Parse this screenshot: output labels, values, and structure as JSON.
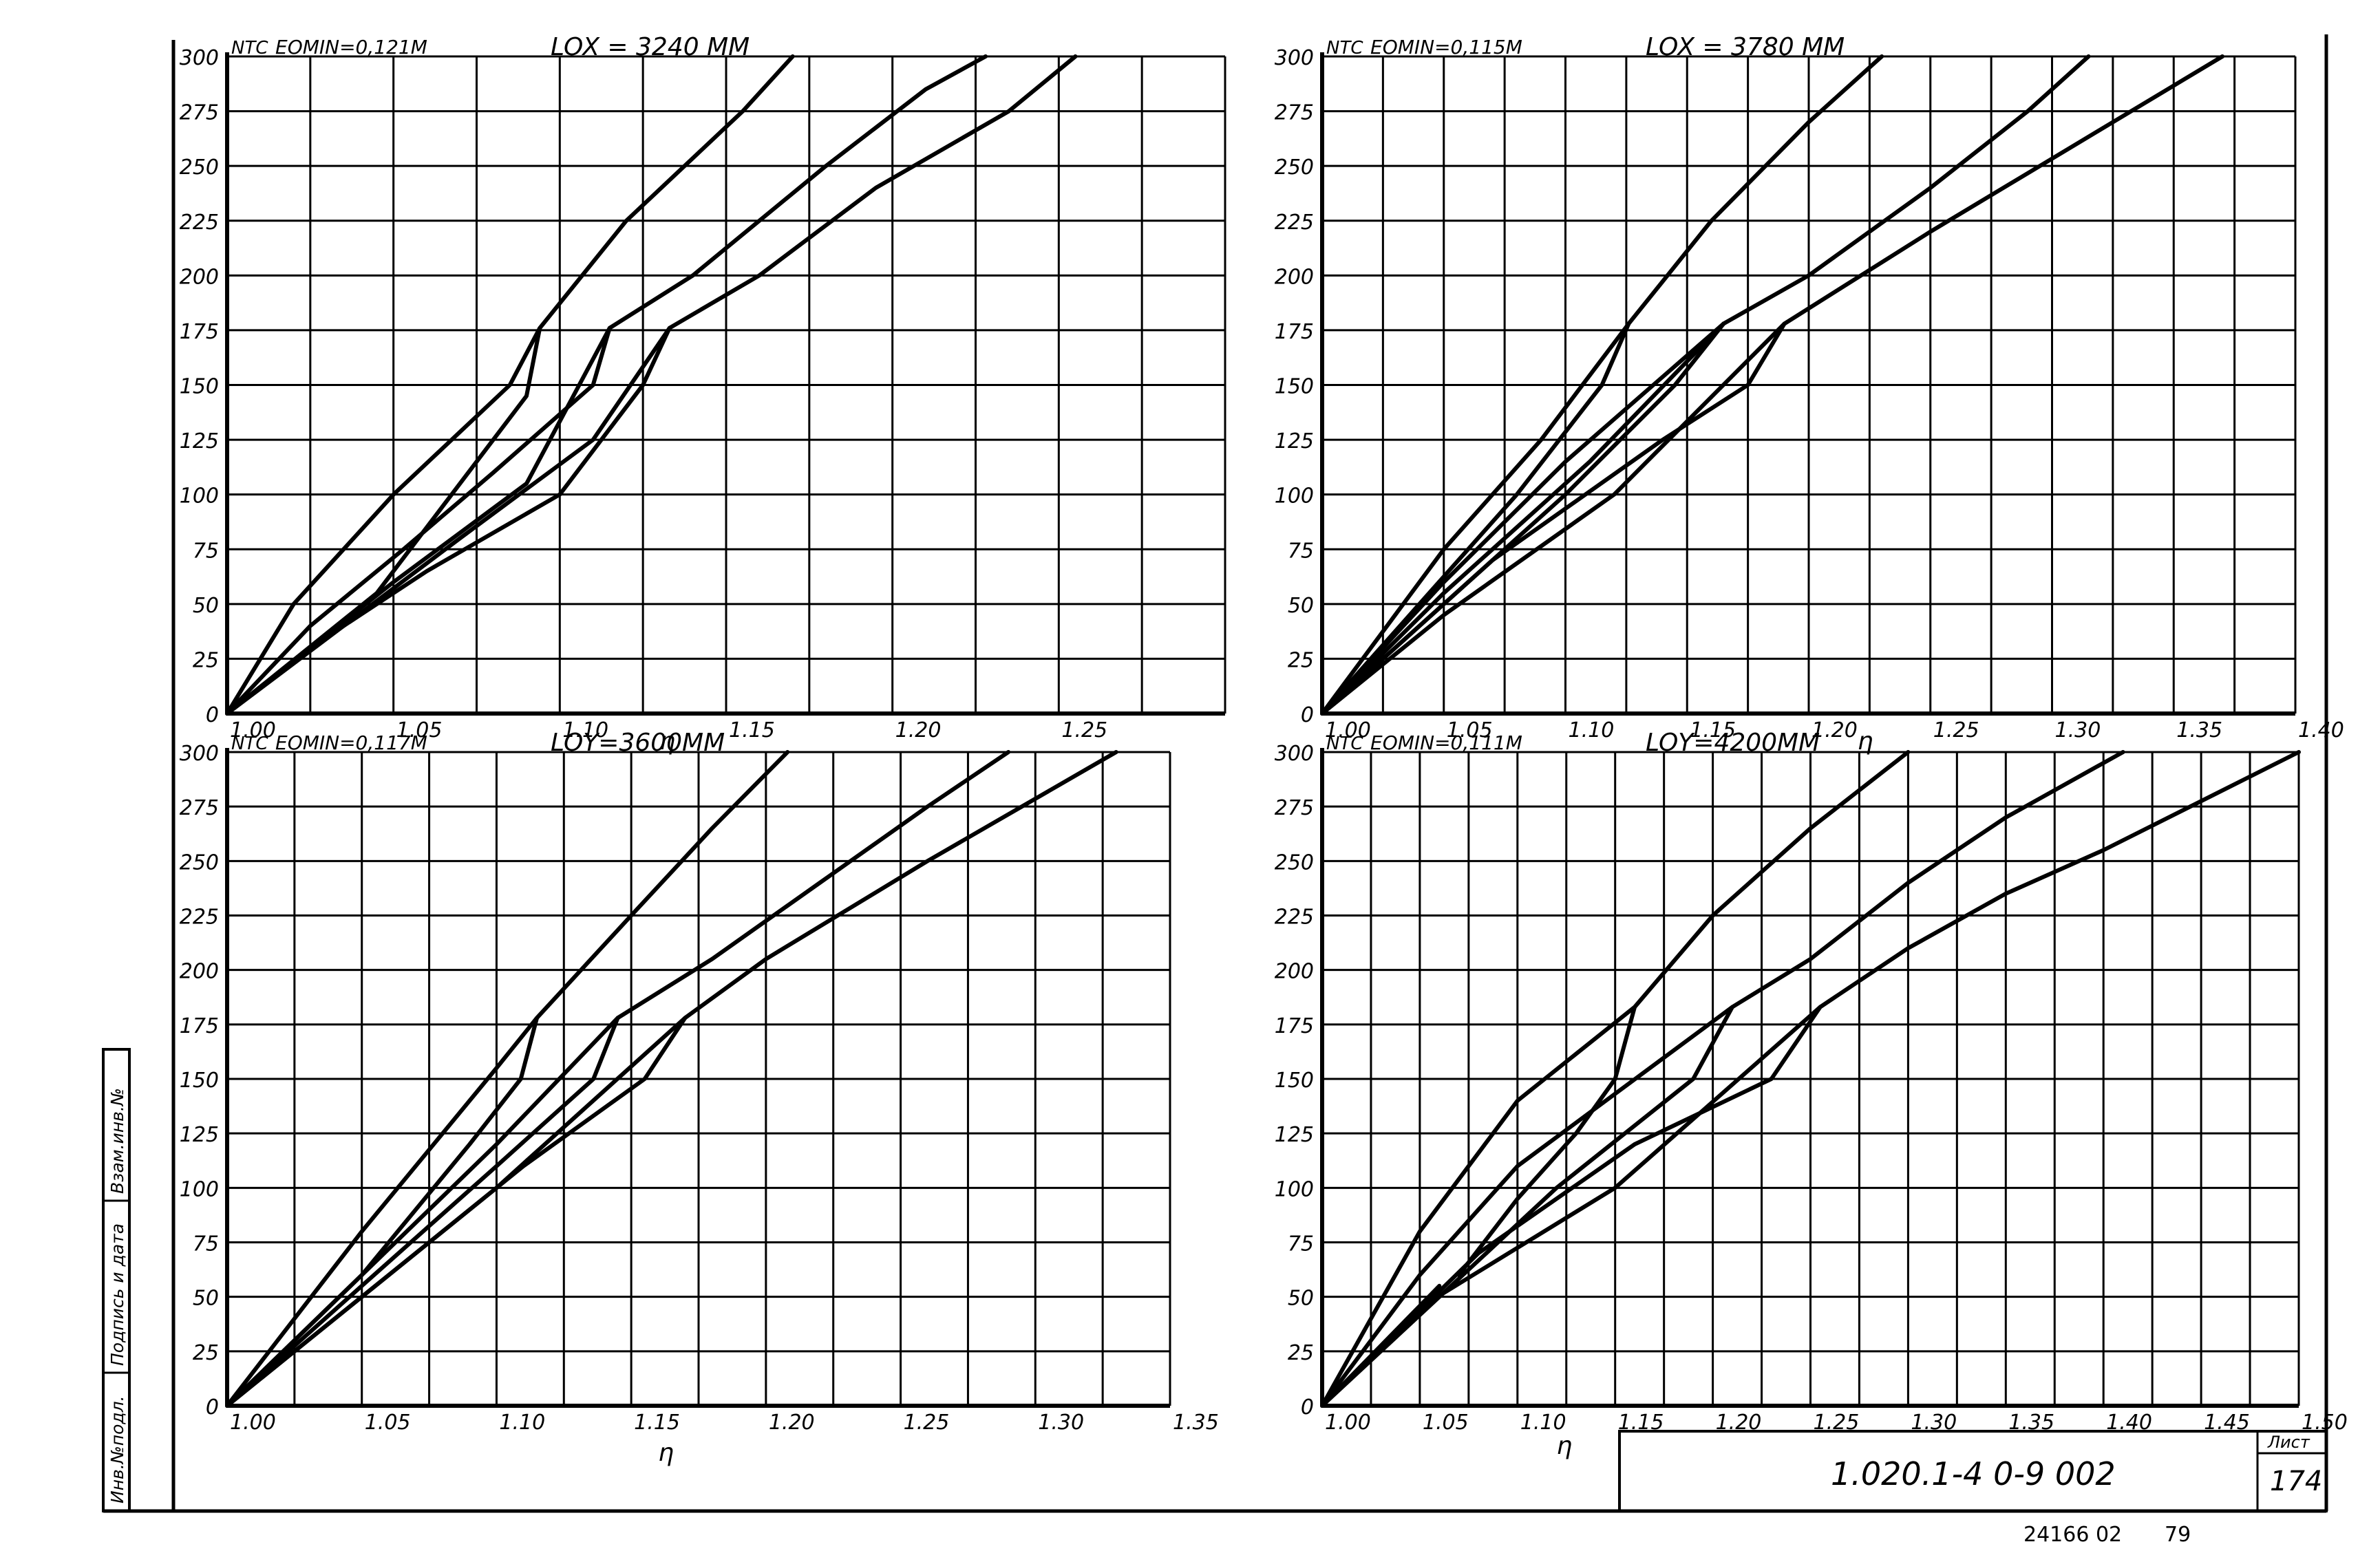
{
  "title_block": {
    "designation": "1.020.1-4 0-9 002",
    "sheet_label": "Лист",
    "sheet_number": "174",
    "archive_number": "24166 02",
    "page": "79"
  },
  "side_stamp": {
    "cells": [
      "Инв.№подл.",
      "Подпись и дата",
      "Взам.инв.№"
    ]
  },
  "chart_data": [
    {
      "type": "line",
      "id": "lox3240",
      "title": "LOX = 3240 ММ",
      "subtitle": "EOMIN=0,121М",
      "ylabel": "NТС",
      "xlabel": "η",
      "xlim": [
        1.0,
        1.3
      ],
      "ylim": [
        0,
        300
      ],
      "x_ticks": [
        "1.00",
        "1.05",
        "1.10",
        "1.15",
        "1.20",
        "1.25"
      ],
      "y_ticks": [
        "0",
        "25",
        "50",
        "75",
        "100",
        "125",
        "150",
        "175",
        "200",
        "225",
        "250",
        "275",
        "300"
      ],
      "grid": true,
      "series": [
        {
          "x": [
            1.0,
            1.02,
            1.05,
            1.085,
            1.094,
            1.12,
            1.155,
            1.17
          ],
          "y": [
            0,
            50,
            100,
            150,
            176,
            225,
            275,
            300
          ]
        },
        {
          "x": [
            1.0,
            1.025,
            1.053,
            1.08,
            1.11,
            1.115,
            1.14,
            1.18,
            1.21,
            1.228
          ],
          "y": [
            0,
            40,
            75,
            110,
            150,
            176,
            200,
            250,
            285,
            300
          ]
        },
        {
          "x": [
            1.0,
            1.03,
            1.06,
            1.1,
            1.125,
            1.133,
            1.16,
            1.195,
            1.235,
            1.255
          ],
          "y": [
            0,
            35,
            65,
            100,
            150,
            176,
            200,
            240,
            275,
            300
          ]
        },
        {
          "x": [
            1.0,
            1.045,
            1.09,
            1.094
          ],
          "y": [
            0,
            55,
            145,
            176
          ]
        },
        {
          "x": [
            1.0,
            1.05,
            1.09,
            1.115
          ],
          "y": [
            0,
            60,
            105,
            176
          ]
        },
        {
          "x": [
            1.0,
            1.07,
            1.11,
            1.133
          ],
          "y": [
            0,
            80,
            125,
            176
          ]
        }
      ]
    },
    {
      "type": "line",
      "id": "lox3780",
      "title": "LOX = 3780 ММ",
      "subtitle": "EOMIN=0,115М",
      "ylabel": "NТС",
      "xlabel": "η",
      "xlim": [
        1.0,
        1.4
      ],
      "ylim": [
        0,
        300
      ],
      "x_ticks": [
        "1.00",
        "1.05",
        "1.10",
        "1.15",
        "1.20",
        "1.25",
        "1.30",
        "1.35",
        "1.40"
      ],
      "y_ticks": [
        "0",
        "25",
        "50",
        "75",
        "100",
        "125",
        "150",
        "175",
        "200",
        "225",
        "250",
        "275",
        "300"
      ],
      "grid": true,
      "series": [
        {
          "x": [
            1.0,
            1.05,
            1.09,
            1.126,
            1.16,
            1.2,
            1.23
          ],
          "y": [
            0,
            75,
            125,
            178,
            225,
            270,
            300
          ]
        },
        {
          "x": [
            1.0,
            1.05,
            1.1,
            1.165,
            1.2,
            1.25,
            1.29,
            1.315
          ],
          "y": [
            0,
            60,
            115,
            178,
            200,
            240,
            275,
            300
          ]
        },
        {
          "x": [
            1.0,
            1.05,
            1.12,
            1.19,
            1.25,
            1.31,
            1.37
          ],
          "y": [
            0,
            45,
            100,
            178,
            220,
            260,
            300
          ]
        },
        {
          "x": [
            1.0,
            1.04,
            1.08,
            1.115,
            1.126
          ],
          "y": [
            0,
            50,
            100,
            150,
            178
          ]
        },
        {
          "x": [
            1.0,
            1.05,
            1.1,
            1.145,
            1.165
          ],
          "y": [
            0,
            50,
            100,
            150,
            178
          ]
        },
        {
          "x": [
            1.0,
            1.07,
            1.14,
            1.175,
            1.19
          ],
          "y": [
            0,
            70,
            125,
            150,
            178
          ]
        },
        {
          "x": [
            1.0,
            1.05,
            1.11,
            1.165
          ],
          "y": [
            0,
            55,
            115,
            178
          ]
        }
      ]
    },
    {
      "type": "line",
      "id": "loy3600",
      "title": "LOY=3600ММ",
      "subtitle": "EOMIN=0,117М",
      "ylabel": "NТС",
      "xlabel": "η",
      "xlim": [
        1.0,
        1.35
      ],
      "ylim": [
        0,
        300
      ],
      "x_ticks": [
        "1.00",
        "1.05",
        "1.10",
        "1.15",
        "1.20",
        "1.25",
        "1.30",
        "1.35"
      ],
      "y_ticks": [
        "0",
        "25",
        "50",
        "75",
        "100",
        "125",
        "150",
        "175",
        "200",
        "225",
        "250",
        "275",
        "300"
      ],
      "grid": true,
      "series": [
        {
          "x": [
            1.0,
            1.05,
            1.1,
            1.115,
            1.15,
            1.18,
            1.208
          ],
          "y": [
            0,
            80,
            155,
            178,
            225,
            265,
            300
          ]
        },
        {
          "x": [
            1.0,
            1.05,
            1.1,
            1.145,
            1.18,
            1.22,
            1.26,
            1.29
          ],
          "y": [
            0,
            60,
            120,
            178,
            205,
            240,
            275,
            300
          ]
        },
        {
          "x": [
            1.0,
            1.05,
            1.1,
            1.17,
            1.2,
            1.26,
            1.33
          ],
          "y": [
            0,
            50,
            100,
            178,
            205,
            250,
            300
          ]
        },
        {
          "x": [
            1.0,
            1.05,
            1.09,
            1.109,
            1.115
          ],
          "y": [
            0,
            60,
            120,
            150,
            178
          ]
        },
        {
          "x": [
            1.0,
            1.05,
            1.1,
            1.136,
            1.145
          ],
          "y": [
            0,
            55,
            110,
            150,
            178
          ]
        },
        {
          "x": [
            1.0,
            1.06,
            1.11,
            1.155,
            1.17
          ],
          "y": [
            0,
            60,
            110,
            150,
            178
          ]
        }
      ]
    },
    {
      "type": "line",
      "id": "loy4200",
      "title": "LOY=4200ММ",
      "subtitle": "EOMIN=0,111М",
      "ylabel": "NТС",
      "xlabel": "η",
      "xlim": [
        1.0,
        1.5
      ],
      "ylim": [
        0,
        300
      ],
      "x_ticks": [
        "1.00",
        "1.05",
        "1.10",
        "1.15",
        "1.20",
        "1.25",
        "1.30",
        "1.35",
        "1.40",
        "1.45",
        "1.50"
      ],
      "y_ticks": [
        "0",
        "25",
        "50",
        "75",
        "100",
        "125",
        "150",
        "175",
        "200",
        "225",
        "250",
        "275",
        "300"
      ],
      "grid": true,
      "series": [
        {
          "x": [
            1.0,
            1.05,
            1.1,
            1.16,
            1.2,
            1.25,
            1.3
          ],
          "y": [
            0,
            80,
            140,
            183,
            225,
            265,
            300
          ]
        },
        {
          "x": [
            1.0,
            1.05,
            1.1,
            1.21,
            1.25,
            1.3,
            1.35,
            1.41
          ],
          "y": [
            0,
            60,
            110,
            183,
            205,
            240,
            270,
            300
          ]
        },
        {
          "x": [
            1.0,
            1.05,
            1.15,
            1.255,
            1.3,
            1.35,
            1.4,
            1.5
          ],
          "y": [
            0,
            45,
            100,
            183,
            210,
            235,
            255,
            300
          ]
        },
        {
          "x": [
            1.0,
            1.06
          ],
          "y": [
            0,
            55
          ]
        },
        {
          "x": [
            1.07,
            1.1,
            1.13,
            1.15,
            1.16
          ],
          "y": [
            60,
            95,
            125,
            150,
            183
          ]
        },
        {
          "x": [
            1.0,
            1.06,
            1.12,
            1.19,
            1.21
          ],
          "y": [
            0,
            50,
            100,
            150,
            183
          ]
        },
        {
          "x": [
            1.0,
            1.08,
            1.16,
            1.23,
            1.255
          ],
          "y": [
            0,
            70,
            120,
            150,
            183
          ]
        }
      ]
    }
  ]
}
